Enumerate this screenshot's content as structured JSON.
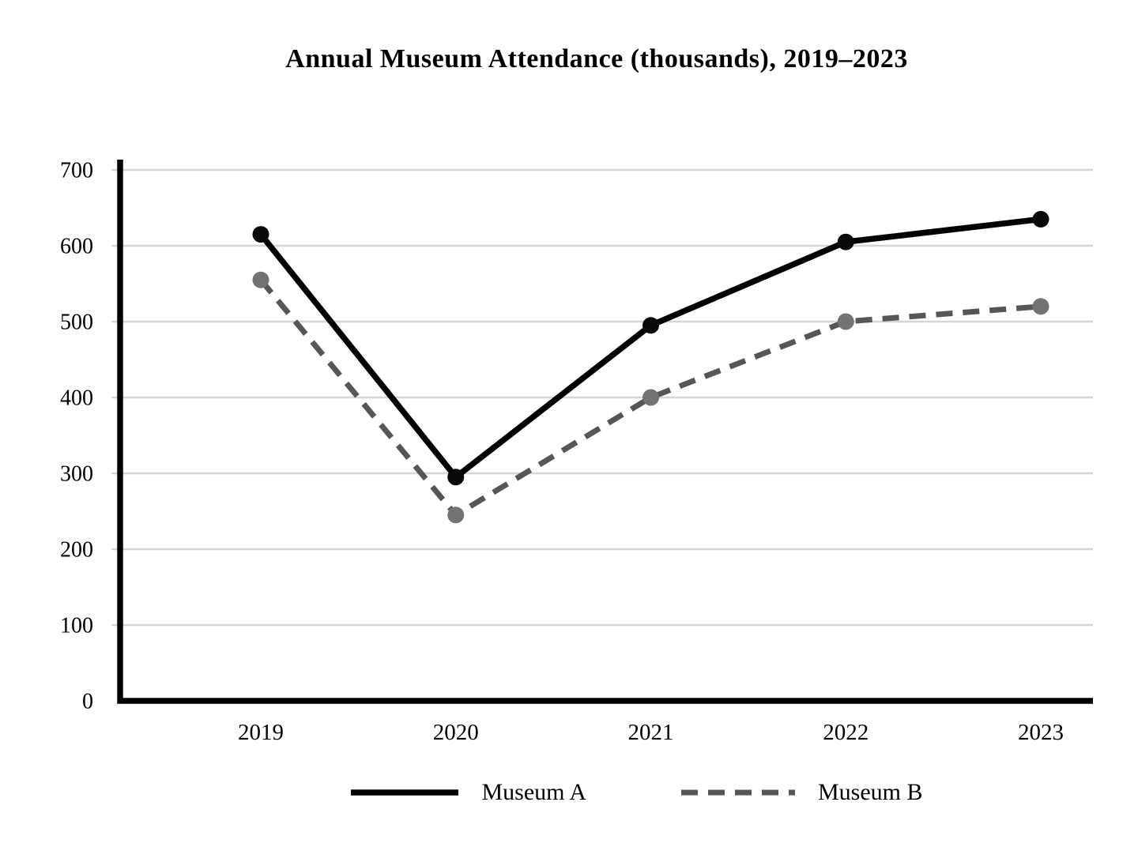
{
  "chart_data": {
    "type": "line",
    "title": "Annual Museum Attendance (thousands), 2019–2023",
    "categories": [
      "2019",
      "2020",
      "2021",
      "2022",
      "2023"
    ],
    "series": [
      {
        "name": "Museum A",
        "values": [
          615,
          295,
          495,
          605,
          635
        ],
        "color": "#000000",
        "marker_color": "#0a0a0a",
        "dash": false
      },
      {
        "name": "Museum B",
        "values": [
          555,
          245,
          400,
          500,
          520
        ],
        "color": "#565656",
        "marker_color": "#737373",
        "dash": true
      }
    ],
    "xlabel": "",
    "ylabel": "",
    "ylim": [
      0,
      700
    ],
    "yticks": [
      0,
      100,
      200,
      300,
      400,
      500,
      600,
      700
    ],
    "grid": true,
    "legend_position": "bottom",
    "colors": {
      "gridline": "#d5d5d5",
      "axis": "#000000",
      "text": "#000000"
    }
  }
}
